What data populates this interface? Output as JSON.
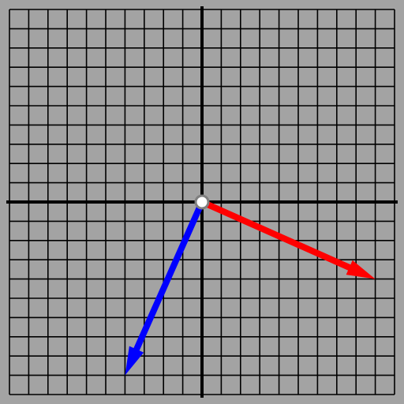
{
  "grid": {
    "x_range": [
      -10,
      10
    ],
    "y_range": [
      -10,
      10
    ],
    "step": 1,
    "background_color": "#a3a3a3",
    "line_color": "#000000",
    "axis_color": "#000000"
  },
  "origin_handle": {
    "x": 0,
    "y": 0,
    "fill": "#ffffff",
    "stroke": "#7f7f7f"
  },
  "vectors": [
    {
      "id": "red",
      "color": "#ff0000",
      "tail": [
        0,
        0
      ],
      "head": [
        9,
        -4
      ]
    },
    {
      "id": "blue",
      "color": "#0000ff",
      "tail": [
        0,
        0
      ],
      "head": [
        -4,
        -9
      ]
    }
  ]
}
